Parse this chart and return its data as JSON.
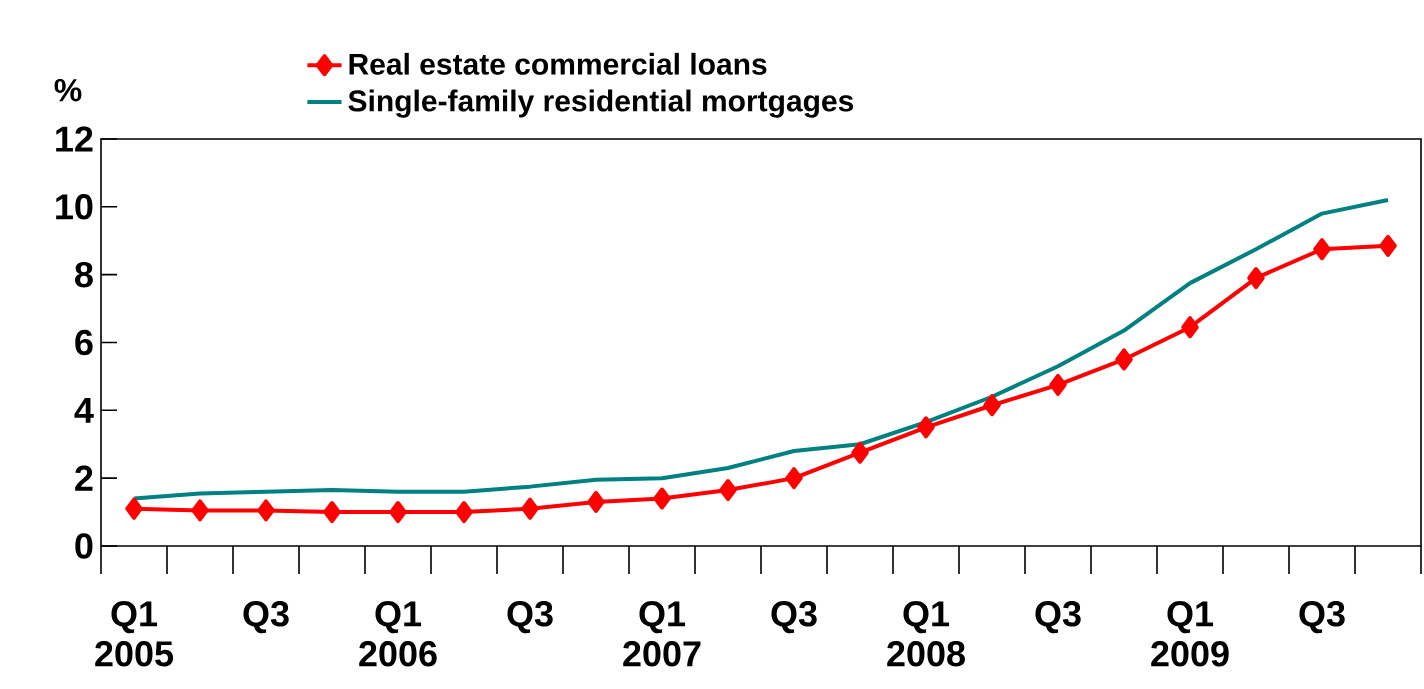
{
  "chart_data": {
    "type": "line",
    "ylabel": "%",
    "categories": [
      "Q1 2005",
      null,
      "Q3",
      null,
      "Q1 2006",
      null,
      "Q3",
      null,
      "Q1 2007",
      null,
      "Q3",
      null,
      "Q1 2008",
      null,
      "Q3",
      null,
      "Q1 2009",
      null,
      "Q3",
      null
    ],
    "series": [
      {
        "name": "Real estate commercial loans",
        "color": "#ff0000",
        "marker": "diamond",
        "values": [
          1.1,
          1.05,
          1.05,
          1.0,
          1.0,
          1.0,
          1.1,
          1.3,
          1.4,
          1.65,
          2.0,
          2.75,
          3.5,
          4.15,
          4.75,
          5.5,
          6.45,
          7.9,
          8.75,
          8.85
        ]
      },
      {
        "name": "Single-family residential mortgages",
        "color": "#008080",
        "marker": "none",
        "values": [
          1.4,
          1.55,
          1.6,
          1.65,
          1.6,
          1.6,
          1.75,
          1.95,
          2.0,
          2.3,
          2.8,
          3.0,
          3.65,
          4.4,
          5.3,
          6.35,
          7.75,
          8.75,
          9.8,
          10.2
        ]
      }
    ],
    "ylim": [
      0,
      12
    ],
    "yticks": [
      0,
      2,
      4,
      6,
      8,
      10,
      12
    ],
    "grid": false,
    "legend": "top",
    "line_style": "solid"
  }
}
